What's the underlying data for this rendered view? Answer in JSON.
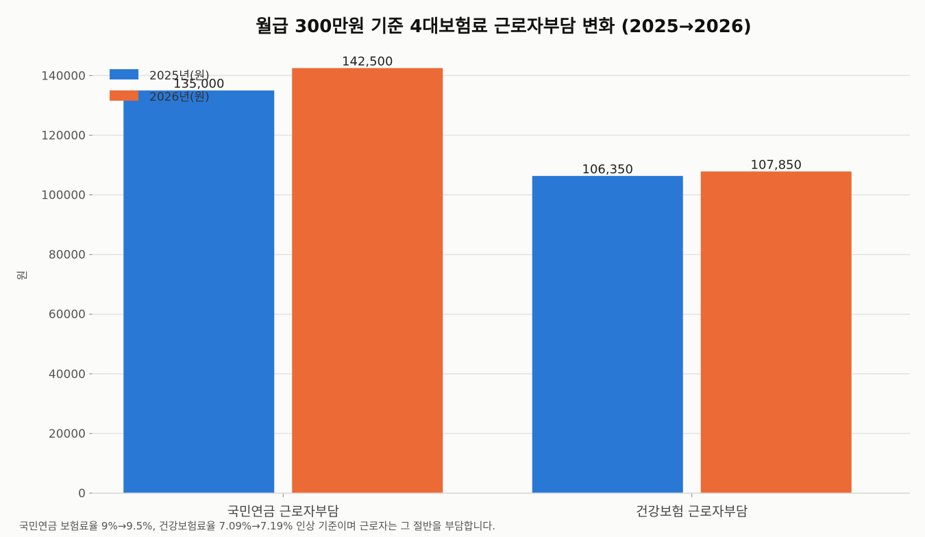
{
  "chart_data": {
    "type": "bar",
    "title": "월급 300만원 기준 4대보험료 근로자부담 변화 (2025→2026)",
    "ylabel": "원",
    "xlabel": "",
    "categories": [
      "국민연금 근로자부담",
      "건강보험 근로자부담"
    ],
    "series": [
      {
        "name": "2025년(원)",
        "color": "#2a78d6",
        "values": [
          135000,
          106350
        ],
        "labels": [
          "135,000",
          "106,350"
        ]
      },
      {
        "name": "2026년(원)",
        "color": "#eb6a35",
        "values": [
          142500,
          107850
        ],
        "labels": [
          "142,500",
          "107,850"
        ]
      }
    ],
    "ylim": [
      0,
      146500
    ],
    "yticks": [
      0,
      20000,
      40000,
      60000,
      80000,
      100000,
      120000,
      140000
    ],
    "grid": true,
    "legend_position": "top-left"
  },
  "footnote": "국민연금 보험료율 9%→9.5%, 건강보험료율 7.09%→7.19% 인상 기준이며 근로자는 그 절반을 부담합니다."
}
